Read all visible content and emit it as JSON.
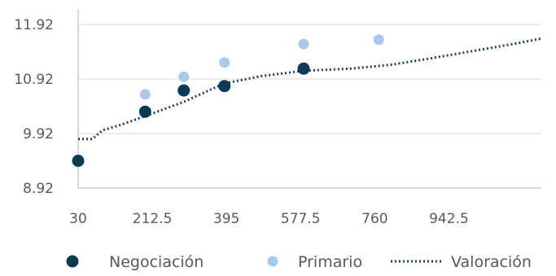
{
  "chart_data": {
    "type": "scatter",
    "title": "",
    "xlabel": "",
    "ylabel": "",
    "xlim": [
      30,
      1170
    ],
    "ylim": [
      8.92,
      11.92
    ],
    "x_ticks": [
      30,
      212.5,
      395,
      577.5,
      760,
      942.5
    ],
    "x_tick_labels": [
      "30",
      "212.5",
      "395",
      "577.5",
      "760",
      "942.5"
    ],
    "y_ticks": [
      8.92,
      9.92,
      10.92,
      11.92
    ],
    "y_tick_labels": [
      "8.92",
      "9.92",
      "10.92",
      "11.92"
    ],
    "grid": "horizontal",
    "legend_position": "bottom",
    "colors": {
      "negociacion": "#0b3a55",
      "primario": "#a9c9ec",
      "valoracion": "#1f3f66",
      "grid": "#d9d9d9",
      "axis": "#bfbfbf"
    },
    "series": [
      {
        "name": "Negociación",
        "kind": "scatter",
        "points": [
          [
            30,
            9.42
          ],
          [
            195,
            10.32
          ],
          [
            290,
            10.71
          ],
          [
            390,
            10.79
          ],
          [
            585,
            11.11
          ]
        ]
      },
      {
        "name": "Primario",
        "kind": "scatter",
        "points": [
          [
            195,
            10.64
          ],
          [
            290,
            10.96
          ],
          [
            390,
            11.22
          ],
          [
            585,
            11.56
          ],
          [
            770,
            11.64
          ]
        ]
      },
      {
        "name": "Valoración",
        "kind": "dotted-line",
        "points": [
          [
            30,
            9.82
          ],
          [
            65,
            9.82
          ],
          [
            90,
            9.98
          ],
          [
            135,
            10.08
          ],
          [
            195,
            10.24
          ],
          [
            290,
            10.5
          ],
          [
            390,
            10.84
          ],
          [
            480,
            10.97
          ],
          [
            585,
            11.07
          ],
          [
            700,
            11.11
          ],
          [
            800,
            11.18
          ],
          [
            900,
            11.3
          ],
          [
            1000,
            11.43
          ],
          [
            1100,
            11.56
          ],
          [
            1170,
            11.66
          ]
        ]
      }
    ]
  }
}
